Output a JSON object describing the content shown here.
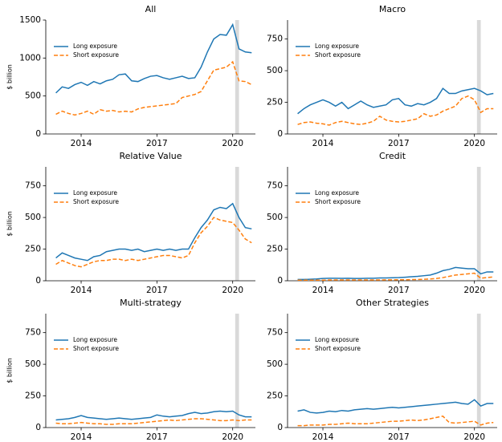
{
  "chart_data": [
    {
      "type": "line",
      "title": "All",
      "ylabel": "$ billion",
      "legend": "upper left",
      "x": [
        2013.0,
        2013.25,
        2013.5,
        2013.75,
        2014.0,
        2014.25,
        2014.5,
        2014.75,
        2015.0,
        2015.25,
        2015.5,
        2015.75,
        2016.0,
        2016.25,
        2016.5,
        2016.75,
        2017.0,
        2017.25,
        2017.5,
        2017.75,
        2018.0,
        2018.25,
        2018.5,
        2018.75,
        2019.0,
        2019.25,
        2019.5,
        2019.75,
        2020.0,
        2020.25,
        2020.5,
        2020.75
      ],
      "xlim": [
        2012.6,
        2020.9
      ],
      "xticks": [
        2014,
        2017,
        2020
      ],
      "ylim": [
        0,
        1500
      ],
      "yticks": [
        0,
        500,
        1000,
        1500
      ],
      "highlight_x": [
        2020.1,
        2020.25
      ],
      "series": [
        {
          "name": "Long exposure",
          "color": "#1f77b4",
          "linestyle": "solid",
          "values": [
            540,
            620,
            600,
            650,
            680,
            640,
            690,
            660,
            700,
            720,
            780,
            790,
            700,
            690,
            730,
            760,
            770,
            740,
            720,
            740,
            760,
            730,
            740,
            880,
            1080,
            1250,
            1310,
            1300,
            1440,
            1120,
            1080,
            1070
          ]
        },
        {
          "name": "Short exposure",
          "color": "#ff7f0e",
          "linestyle": "dashed",
          "values": [
            260,
            300,
            270,
            250,
            270,
            300,
            260,
            320,
            300,
            310,
            290,
            300,
            290,
            330,
            350,
            360,
            370,
            380,
            390,
            400,
            480,
            500,
            520,
            560,
            700,
            840,
            860,
            880,
            950,
            700,
            690,
            650
          ]
        }
      ]
    },
    {
      "type": "line",
      "title": "Macro",
      "legend": "upper left",
      "x": [
        2013.0,
        2013.25,
        2013.5,
        2013.75,
        2014.0,
        2014.25,
        2014.5,
        2014.75,
        2015.0,
        2015.25,
        2015.5,
        2015.75,
        2016.0,
        2016.25,
        2016.5,
        2016.75,
        2017.0,
        2017.25,
        2017.5,
        2017.75,
        2018.0,
        2018.25,
        2018.5,
        2018.75,
        2019.0,
        2019.25,
        2019.5,
        2019.75,
        2020.0,
        2020.25,
        2020.5,
        2020.75
      ],
      "xlim": [
        2012.6,
        2020.9
      ],
      "xticks": [
        2014,
        2017,
        2020
      ],
      "ylim": [
        0,
        900
      ],
      "yticks": [
        0,
        250,
        500,
        750
      ],
      "highlight_x": [
        2020.1,
        2020.25
      ],
      "series": [
        {
          "name": "Long exposure",
          "color": "#1f77b4",
          "linestyle": "solid",
          "values": [
            160,
            200,
            230,
            250,
            270,
            250,
            220,
            250,
            200,
            230,
            260,
            230,
            210,
            220,
            230,
            270,
            280,
            230,
            220,
            240,
            230,
            250,
            280,
            360,
            320,
            320,
            340,
            350,
            360,
            340,
            310,
            320
          ]
        },
        {
          "name": "Short exposure",
          "color": "#ff7f0e",
          "linestyle": "dashed",
          "values": [
            75,
            90,
            95,
            85,
            80,
            70,
            90,
            100,
            90,
            80,
            75,
            85,
            100,
            140,
            110,
            100,
            95,
            100,
            110,
            120,
            160,
            140,
            150,
            180,
            200,
            220,
            280,
            300,
            270,
            170,
            200,
            200
          ]
        }
      ]
    },
    {
      "type": "line",
      "title": "Relative Value",
      "ylabel": "$ billion",
      "legend": "upper left",
      "x": [
        2013.0,
        2013.25,
        2013.5,
        2013.75,
        2014.0,
        2014.25,
        2014.5,
        2014.75,
        2015.0,
        2015.25,
        2015.5,
        2015.75,
        2016.0,
        2016.25,
        2016.5,
        2016.75,
        2017.0,
        2017.25,
        2017.5,
        2017.75,
        2018.0,
        2018.25,
        2018.5,
        2018.75,
        2019.0,
        2019.25,
        2019.5,
        2019.75,
        2020.0,
        2020.25,
        2020.5,
        2020.75
      ],
      "xlim": [
        2012.6,
        2020.9
      ],
      "xticks": [
        2014,
        2017,
        2020
      ],
      "ylim": [
        0,
        900
      ],
      "yticks": [
        0,
        250,
        500,
        750
      ],
      "highlight_x": [
        2020.1,
        2020.25
      ],
      "series": [
        {
          "name": "Long exposure",
          "color": "#1f77b4",
          "linestyle": "solid",
          "values": [
            180,
            220,
            200,
            180,
            170,
            160,
            190,
            200,
            230,
            240,
            250,
            250,
            240,
            250,
            230,
            240,
            250,
            240,
            250,
            240,
            250,
            250,
            340,
            420,
            480,
            560,
            580,
            570,
            610,
            500,
            420,
            410
          ]
        },
        {
          "name": "Short exposure",
          "color": "#ff7f0e",
          "linestyle": "dashed",
          "values": [
            130,
            160,
            140,
            120,
            110,
            130,
            150,
            160,
            160,
            170,
            170,
            160,
            170,
            160,
            170,
            180,
            190,
            200,
            200,
            190,
            180,
            200,
            300,
            380,
            430,
            500,
            480,
            470,
            460,
            400,
            330,
            300
          ]
        }
      ]
    },
    {
      "type": "line",
      "title": "Credit",
      "legend": "upper left",
      "x": [
        2013.0,
        2013.25,
        2013.5,
        2013.75,
        2014.0,
        2014.25,
        2014.5,
        2014.75,
        2015.0,
        2015.25,
        2015.5,
        2015.75,
        2016.0,
        2016.25,
        2016.5,
        2016.75,
        2017.0,
        2017.25,
        2017.5,
        2017.75,
        2018.0,
        2018.25,
        2018.5,
        2018.75,
        2019.0,
        2019.25,
        2019.5,
        2019.75,
        2020.0,
        2020.25,
        2020.5,
        2020.75
      ],
      "xlim": [
        2012.6,
        2020.9
      ],
      "xticks": [
        2014,
        2017,
        2020
      ],
      "ylim": [
        0,
        900
      ],
      "yticks": [
        0,
        250,
        500,
        750
      ],
      "highlight_x": [
        2020.1,
        2020.25
      ],
      "series": [
        {
          "name": "Long exposure",
          "color": "#1f77b4",
          "linestyle": "solid",
          "values": [
            10,
            10,
            12,
            14,
            18,
            20,
            20,
            19,
            20,
            18,
            18,
            20,
            20,
            22,
            22,
            24,
            25,
            28,
            32,
            35,
            40,
            45,
            60,
            80,
            90,
            105,
            100,
            95,
            95,
            55,
            70,
            70
          ]
        },
        {
          "name": "Short exposure",
          "color": "#ff7f0e",
          "linestyle": "dashed",
          "values": [
            5,
            5,
            5,
            5,
            5,
            6,
            6,
            6,
            6,
            6,
            6,
            6,
            6,
            6,
            7,
            7,
            8,
            8,
            9,
            10,
            12,
            14,
            18,
            25,
            35,
            45,
            50,
            55,
            60,
            20,
            25,
            30
          ]
        }
      ]
    },
    {
      "type": "line",
      "title": "Multi-strategy",
      "ylabel": "$ billion",
      "legend": "upper left",
      "x": [
        2013.0,
        2013.25,
        2013.5,
        2013.75,
        2014.0,
        2014.25,
        2014.5,
        2014.75,
        2015.0,
        2015.25,
        2015.5,
        2015.75,
        2016.0,
        2016.25,
        2016.5,
        2016.75,
        2017.0,
        2017.25,
        2017.5,
        2017.75,
        2018.0,
        2018.25,
        2018.5,
        2018.75,
        2019.0,
        2019.25,
        2019.5,
        2019.75,
        2020.0,
        2020.25,
        2020.5,
        2020.75
      ],
      "xlim": [
        2012.6,
        2020.9
      ],
      "xticks": [
        2014,
        2017,
        2020
      ],
      "ylim": [
        0,
        900
      ],
      "yticks": [
        0,
        250,
        500,
        750
      ],
      "highlight_x": [
        2020.1,
        2020.25
      ],
      "series": [
        {
          "name": "Long exposure",
          "color": "#1f77b4",
          "linestyle": "solid",
          "values": [
            60,
            65,
            70,
            80,
            95,
            80,
            75,
            70,
            65,
            70,
            75,
            70,
            65,
            70,
            75,
            80,
            100,
            90,
            85,
            90,
            95,
            110,
            120,
            110,
            115,
            125,
            130,
            125,
            130,
            100,
            85,
            85
          ]
        },
        {
          "name": "Short exposure",
          "color": "#ff7f0e",
          "linestyle": "dashed",
          "values": [
            35,
            30,
            30,
            35,
            40,
            35,
            30,
            30,
            25,
            25,
            30,
            30,
            30,
            35,
            40,
            45,
            50,
            55,
            60,
            55,
            60,
            65,
            70,
            70,
            65,
            60,
            55,
            55,
            60,
            55,
            60,
            60
          ]
        }
      ]
    },
    {
      "type": "line",
      "title": "Other Strategies",
      "legend": "upper left",
      "x": [
        2013.0,
        2013.25,
        2013.5,
        2013.75,
        2014.0,
        2014.25,
        2014.5,
        2014.75,
        2015.0,
        2015.25,
        2015.5,
        2015.75,
        2016.0,
        2016.25,
        2016.5,
        2016.75,
        2017.0,
        2017.25,
        2017.5,
        2017.75,
        2018.0,
        2018.25,
        2018.5,
        2018.75,
        2019.0,
        2019.25,
        2019.5,
        2019.75,
        2020.0,
        2020.25,
        2020.5,
        2020.75
      ],
      "xlim": [
        2012.6,
        2020.9
      ],
      "xticks": [
        2014,
        2017,
        2020
      ],
      "ylim": [
        0,
        900
      ],
      "yticks": [
        0,
        250,
        500,
        750
      ],
      "highlight_x": [
        2020.1,
        2020.25
      ],
      "series": [
        {
          "name": "Long exposure",
          "color": "#1f77b4",
          "linestyle": "solid",
          "values": [
            130,
            140,
            120,
            115,
            120,
            130,
            125,
            135,
            130,
            140,
            145,
            150,
            145,
            150,
            155,
            160,
            155,
            160,
            165,
            170,
            175,
            180,
            185,
            190,
            195,
            200,
            190,
            185,
            220,
            170,
            190,
            190
          ]
        },
        {
          "name": "Short exposure",
          "color": "#ff7f0e",
          "linestyle": "dashed",
          "values": [
            15,
            15,
            20,
            20,
            20,
            25,
            25,
            30,
            35,
            30,
            30,
            30,
            35,
            40,
            45,
            50,
            50,
            55,
            60,
            55,
            60,
            70,
            80,
            90,
            40,
            35,
            40,
            45,
            50,
            20,
            35,
            40
          ]
        }
      ]
    }
  ]
}
